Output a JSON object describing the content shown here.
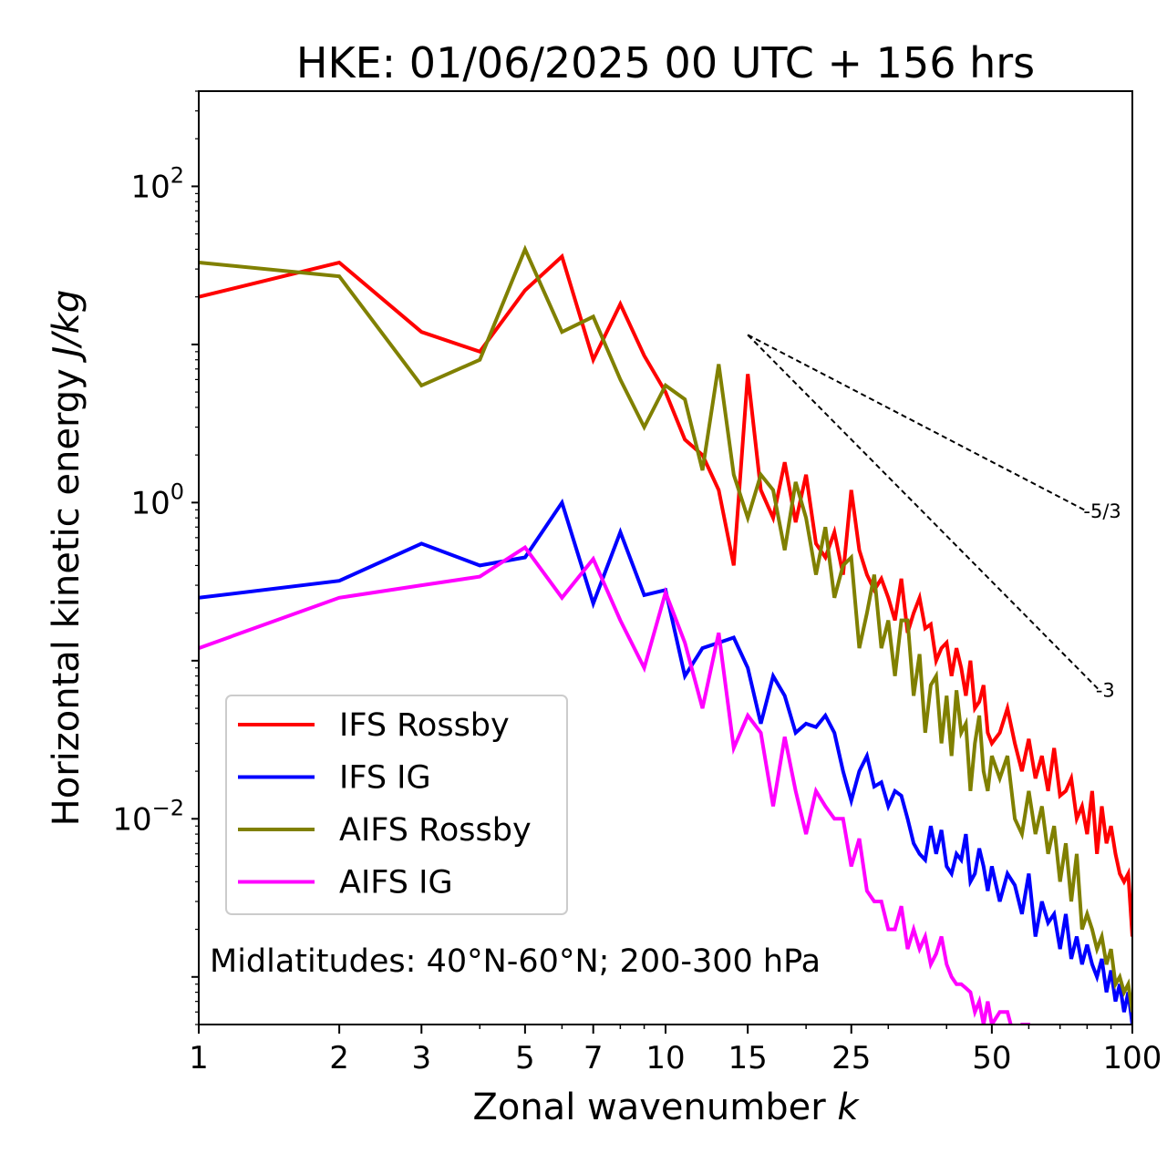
{
  "chart_data": {
    "type": "line",
    "title": "HKE: 01/06/2025 00 UTC + 156 hrs",
    "xlabel": "Zonal wavenumber",
    "xlabel_var": "k",
    "ylabel": "Horizontal kinetic energy",
    "ylabel_unit": "J/kg",
    "xscale": "log",
    "yscale": "log",
    "xlim": [
      1,
      100
    ],
    "ylim": [
      0.0005,
      400
    ],
    "x_ticks": [
      1,
      2,
      3,
      5,
      7,
      10,
      15,
      25,
      50,
      100
    ],
    "x_tick_labels": [
      "1",
      "2",
      "3",
      "5",
      "7",
      "10",
      "15",
      "25",
      "50",
      "100"
    ],
    "y_ticks": [
      100,
      1,
      0.01
    ],
    "y_tick_labels": [
      {
        "base": "10",
        "exp": "2"
      },
      {
        "base": "10",
        "exp": "0"
      },
      {
        "base": "10",
        "exp": "−2"
      }
    ],
    "annotation": "Midlatitudes: 40°N-60°N; 200-300 hPa",
    "legend_position": "lower-left",
    "reference_lines": [
      {
        "label": "-5/3",
        "x": [
          15,
          80
        ],
        "y": [
          11.5,
          0.88
        ]
      },
      {
        "label": "-3",
        "x": [
          15,
          85
        ],
        "y": [
          11.5,
          0.065
        ]
      }
    ],
    "series": [
      {
        "name": "IFS Rossby",
        "color": "#ff0000",
        "x": [
          1,
          2,
          3,
          4,
          5,
          6,
          7,
          8,
          9,
          10,
          11,
          12,
          13,
          14,
          15,
          16,
          17,
          18,
          19,
          20,
          21,
          22,
          23,
          24,
          25,
          26,
          27,
          28,
          29,
          30,
          31,
          32,
          33,
          34,
          35,
          36,
          37,
          38,
          39,
          40,
          41,
          42,
          43,
          44,
          45,
          46,
          47,
          48,
          49,
          50,
          52,
          54,
          56,
          58,
          60,
          62,
          64,
          66,
          68,
          70,
          72,
          74,
          76,
          78,
          80,
          82,
          84,
          86,
          88,
          90,
          92,
          94,
          96,
          98,
          100
        ],
        "y": [
          20,
          33,
          12,
          9,
          22,
          36,
          8,
          18,
          8.5,
          5,
          2.5,
          2,
          1.2,
          0.4,
          6.5,
          1.2,
          0.8,
          1.8,
          0.75,
          1.5,
          0.55,
          0.45,
          0.65,
          0.35,
          1.2,
          0.5,
          0.35,
          0.28,
          0.33,
          0.25,
          0.18,
          0.33,
          0.15,
          0.2,
          0.25,
          0.16,
          0.17,
          0.1,
          0.12,
          0.13,
          0.08,
          0.12,
          0.09,
          0.06,
          0.1,
          0.05,
          0.055,
          0.07,
          0.035,
          0.03,
          0.035,
          0.05,
          0.03,
          0.02,
          0.032,
          0.018,
          0.025,
          0.015,
          0.028,
          0.014,
          0.015,
          0.018,
          0.01,
          0.012,
          0.008,
          0.015,
          0.006,
          0.012,
          0.007,
          0.009,
          0.006,
          0.0045,
          0.004,
          0.0045,
          0.0018
        ]
      },
      {
        "name": "IFS IG",
        "color": "#0000ff",
        "x": [
          1,
          2,
          3,
          4,
          5,
          6,
          7,
          8,
          9,
          10,
          11,
          12,
          13,
          14,
          15,
          16,
          17,
          18,
          19,
          20,
          21,
          22,
          23,
          24,
          25,
          26,
          27,
          28,
          29,
          30,
          31,
          32,
          33,
          34,
          35,
          36,
          37,
          38,
          39,
          40,
          41,
          42,
          43,
          44,
          45,
          46,
          47,
          48,
          49,
          50,
          52,
          54,
          56,
          58,
          60,
          62,
          64,
          66,
          68,
          70,
          72,
          74,
          76,
          78,
          80,
          82,
          84,
          86,
          88,
          90,
          92,
          94,
          96,
          98,
          100
        ],
        "y": [
          0.25,
          0.32,
          0.55,
          0.4,
          0.45,
          1.0,
          0.23,
          0.65,
          0.26,
          0.28,
          0.08,
          0.12,
          0.13,
          0.14,
          0.09,
          0.04,
          0.08,
          0.06,
          0.035,
          0.04,
          0.038,
          0.045,
          0.035,
          0.02,
          0.013,
          0.02,
          0.025,
          0.016,
          0.017,
          0.012,
          0.015,
          0.014,
          0.01,
          0.007,
          0.006,
          0.0055,
          0.009,
          0.006,
          0.0085,
          0.005,
          0.0045,
          0.006,
          0.0055,
          0.008,
          0.004,
          0.0045,
          0.0065,
          0.005,
          0.0035,
          0.005,
          0.003,
          0.0045,
          0.0038,
          0.0025,
          0.0045,
          0.0018,
          0.003,
          0.0022,
          0.0025,
          0.0015,
          0.0025,
          0.0013,
          0.0018,
          0.0012,
          0.0016,
          0.0012,
          0.001,
          0.0013,
          0.0008,
          0.0011,
          0.0007,
          0.0009,
          0.0006,
          0.0008,
          0.0005
        ]
      },
      {
        "name": "AIFS Rossby",
        "color": "#808000",
        "x": [
          1,
          2,
          3,
          4,
          5,
          6,
          7,
          8,
          9,
          10,
          11,
          12,
          13,
          14,
          15,
          16,
          17,
          18,
          19,
          20,
          21,
          22,
          23,
          24,
          25,
          26,
          27,
          28,
          29,
          30,
          31,
          32,
          33,
          34,
          35,
          36,
          37,
          38,
          39,
          40,
          41,
          42,
          43,
          44,
          45,
          46,
          47,
          48,
          49,
          50,
          52,
          54,
          56,
          58,
          60,
          62,
          64,
          66,
          68,
          70,
          72,
          74,
          76,
          78,
          80,
          82,
          84,
          86,
          88,
          90,
          92,
          94,
          96,
          98,
          100
        ],
        "y": [
          33,
          27,
          5.5,
          8,
          40,
          12,
          15,
          6,
          3,
          5.5,
          4.5,
          1.6,
          7.5,
          1.5,
          0.8,
          1.5,
          1.2,
          0.5,
          1.35,
          0.8,
          0.35,
          0.7,
          0.25,
          0.4,
          0.45,
          0.12,
          0.2,
          0.35,
          0.12,
          0.18,
          0.08,
          0.18,
          0.18,
          0.06,
          0.11,
          0.035,
          0.07,
          0.08,
          0.03,
          0.06,
          0.025,
          0.065,
          0.035,
          0.04,
          0.015,
          0.03,
          0.045,
          0.02,
          0.015,
          0.025,
          0.018,
          0.025,
          0.01,
          0.008,
          0.015,
          0.008,
          0.012,
          0.006,
          0.009,
          0.004,
          0.007,
          0.003,
          0.006,
          0.002,
          0.0025,
          0.002,
          0.0015,
          0.0018,
          0.0012,
          0.0015,
          0.0009,
          0.001,
          0.0008,
          0.0009,
          0.0006
        ]
      },
      {
        "name": "AIFS IG",
        "color": "#ff00ff",
        "x": [
          1,
          2,
          3,
          4,
          5,
          6,
          7,
          8,
          9,
          10,
          11,
          12,
          13,
          14,
          15,
          16,
          17,
          18,
          19,
          20,
          21,
          22,
          23,
          24,
          25,
          26,
          27,
          28,
          29,
          30,
          31,
          32,
          33,
          34,
          35,
          36,
          37,
          38,
          39,
          40,
          41,
          42,
          43,
          44,
          45,
          46,
          47,
          48,
          49,
          50,
          52,
          54,
          56,
          58,
          60,
          62
        ],
        "y": [
          0.12,
          0.25,
          0.3,
          0.34,
          0.52,
          0.25,
          0.44,
          0.18,
          0.09,
          0.27,
          0.13,
          0.05,
          0.15,
          0.028,
          0.045,
          0.035,
          0.012,
          0.033,
          0.015,
          0.008,
          0.015,
          0.012,
          0.01,
          0.01,
          0.005,
          0.0075,
          0.0035,
          0.003,
          0.003,
          0.002,
          0.002,
          0.0028,
          0.0015,
          0.002,
          0.0015,
          0.0018,
          0.0012,
          0.0014,
          0.0018,
          0.0012,
          0.001,
          0.0009,
          0.0009,
          0.00085,
          0.0008,
          0.0006,
          0.0007,
          0.0005,
          0.0007,
          0.0005,
          0.0006,
          0.0006,
          0.0004,
          0.0005,
          0.0005,
          0.0004
        ]
      }
    ]
  }
}
